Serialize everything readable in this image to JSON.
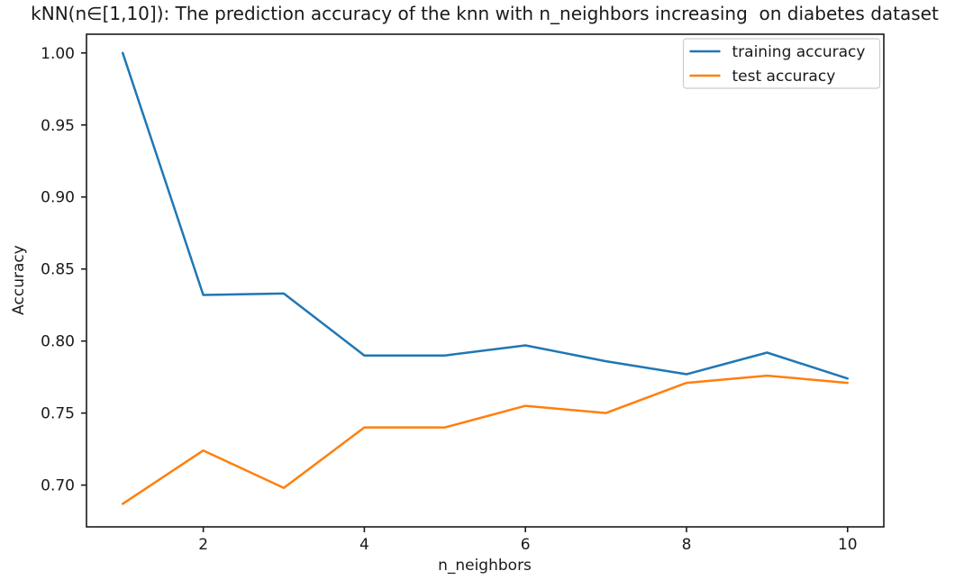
{
  "chart_data": {
    "type": "line",
    "title": "kNN(n∈[1,10]): The prediction accuracy of the knn with n_neighbors increasing  on diabetes dataset",
    "xlabel": "n_neighbors",
    "ylabel": "Accuracy",
    "x": [
      1,
      2,
      3,
      4,
      5,
      6,
      7,
      8,
      9,
      10
    ],
    "series": [
      {
        "name": "training accuracy",
        "color": "#1f77b4",
        "values": [
          1.0,
          0.832,
          0.833,
          0.79,
          0.79,
          0.797,
          0.786,
          0.777,
          0.792,
          0.774
        ]
      },
      {
        "name": "test accuracy",
        "color": "#ff7f0e",
        "values": [
          0.687,
          0.724,
          0.698,
          0.74,
          0.74,
          0.755,
          0.75,
          0.771,
          0.776,
          0.771
        ]
      }
    ],
    "xticks": [
      2,
      4,
      6,
      8,
      10
    ],
    "yticks": [
      0.7,
      0.75,
      0.8,
      0.85,
      0.9,
      0.95,
      1.0
    ],
    "xlim": [
      0.55,
      10.45
    ],
    "ylim": [
      0.671,
      1.013
    ],
    "grid": false,
    "legend_position": "upper right",
    "spine_color": "#1a1a1a",
    "background_color": "#ffffff"
  }
}
